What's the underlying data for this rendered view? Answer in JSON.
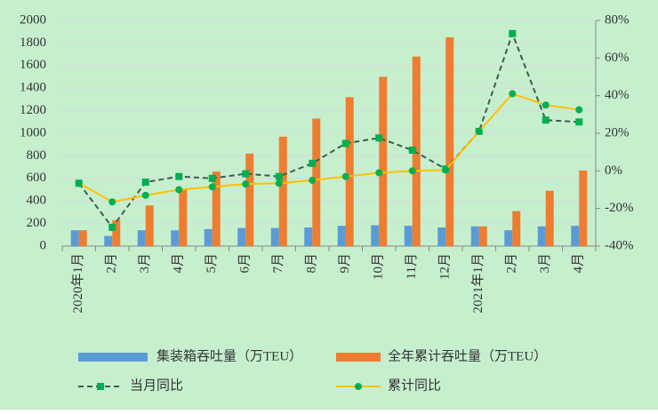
{
  "chart_data": {
    "type": "bar-line",
    "categories": [
      "2020年1月",
      "2月",
      "3月",
      "4月",
      "5月",
      "6月",
      "7月",
      "8月",
      "9月",
      "10月",
      "11月",
      "12月",
      "2021年1月",
      "2月",
      "3月",
      "4月"
    ],
    "series": [
      {
        "name": "集装箱吞吐量（万TEU）",
        "type": "bar",
        "color": "#5b9bd5",
        "values": [
          140,
          90,
          140,
          140,
          150,
          160,
          160,
          165,
          180,
          185,
          180,
          165,
          175,
          140,
          175,
          180
        ]
      },
      {
        "name": "全年累计吞吐量（万TEU）",
        "type": "bar",
        "color": "#ed7d31",
        "values": [
          140,
          230,
          360,
          500,
          660,
          820,
          970,
          1130,
          1320,
          1500,
          1680,
          1850,
          175,
          310,
          490,
          670
        ]
      },
      {
        "name": "当月同比",
        "type": "line",
        "axis": "y2",
        "color": "#3d5c4c",
        "dashed": true,
        "marker": "square",
        "marker_color": "#00b050",
        "values": [
          -6.6,
          -30,
          -6,
          -3,
          -4,
          -1.5,
          -3,
          4,
          14.6,
          17.5,
          11,
          1,
          21,
          73,
          27,
          26
        ]
      },
      {
        "name": "累计同比",
        "type": "line",
        "axis": "y2",
        "color": "#ffc000",
        "dashed": false,
        "marker": "circle",
        "marker_color": "#00b050",
        "values": [
          -6.6,
          -16.5,
          -13,
          -10,
          -8.5,
          -7,
          -6.6,
          -5,
          -3,
          -1,
          0,
          0.5,
          21,
          41,
          35,
          32.5
        ]
      }
    ],
    "ylim": [
      0,
      2000
    ],
    "yticks": [
      0,
      200,
      400,
      600,
      800,
      1000,
      1200,
      1400,
      1600,
      1800,
      2000
    ],
    "y2lim": [
      -40,
      80
    ],
    "y2ticks": [
      {
        "value": -40,
        "label": "-40%"
      },
      {
        "value": -20,
        "label": "-20%"
      },
      {
        "value": 0,
        "label": "0%"
      },
      {
        "value": 20,
        "label": "20%"
      },
      {
        "value": 40,
        "label": "40%"
      },
      {
        "value": 60,
        "label": "60%"
      },
      {
        "value": 80,
        "label": "80%"
      }
    ],
    "grid": true,
    "legend": "bottom",
    "background": "#c6efce"
  }
}
